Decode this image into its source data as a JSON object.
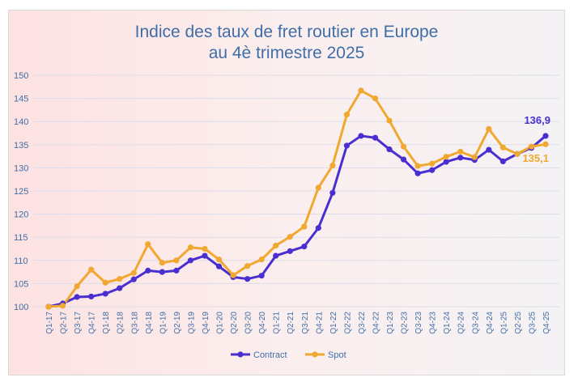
{
  "chart_data": {
    "type": "line",
    "title_lines": [
      "Indice des taux de fret routier en Europe",
      "au 4è trimestre 2025"
    ],
    "categories": [
      "Q1-17",
      "Q2-17",
      "Q3-17",
      "Q4-17",
      "Q1-18",
      "Q2-18",
      "Q3-18",
      "Q4-18",
      "Q1-19",
      "Q2-19",
      "Q3-19",
      "Q4-19",
      "Q1-20",
      "Q2-20",
      "Q3-20",
      "Q4-20",
      "Q1-21",
      "Q2-21",
      "Q3-21",
      "Q4-21",
      "Q1-22",
      "Q2-22",
      "Q3-22",
      "Q4-22",
      "Q1-23",
      "Q2-23",
      "Q3-23",
      "Q4-23",
      "Q1-24",
      "Q2-24",
      "Q3-24",
      "Q4-24",
      "Q1-25",
      "Q2-25",
      "Q3-25",
      "Q4-25"
    ],
    "ylim": [
      100,
      150
    ],
    "yticks": [
      100,
      105,
      110,
      115,
      120,
      125,
      130,
      135,
      140,
      145,
      150
    ],
    "grid": true,
    "legend_position": "bottom",
    "series": [
      {
        "name": "Contract",
        "color": "#4a2fd0",
        "end_label": "136,9",
        "values": [
          100,
          100.7,
          102.1,
          102.2,
          102.8,
          104,
          105.9,
          107.8,
          107.5,
          107.8,
          110,
          111,
          108.7,
          106.4,
          106,
          106.7,
          111,
          112,
          113,
          117,
          124.6,
          134.8,
          136.9,
          136.5,
          134,
          131.8,
          128.8,
          129.5,
          131.3,
          132.2,
          131.7,
          133.9,
          131.4,
          133,
          134.3,
          136.9
        ]
      },
      {
        "name": "Spot",
        "color": "#f0a830",
        "end_label": "135,1",
        "values": [
          100,
          100.2,
          104.4,
          108,
          105.2,
          106,
          107.3,
          113.5,
          109.5,
          110,
          112.8,
          112.5,
          110.2,
          106.8,
          108.8,
          110.2,
          113.2,
          115.1,
          117.3,
          125.7,
          130.5,
          141.5,
          146.7,
          145,
          140.2,
          134.6,
          130.4,
          130.9,
          132.4,
          133.5,
          132.3,
          138.4,
          134.4,
          133,
          134.6,
          135.1
        ]
      }
    ]
  }
}
